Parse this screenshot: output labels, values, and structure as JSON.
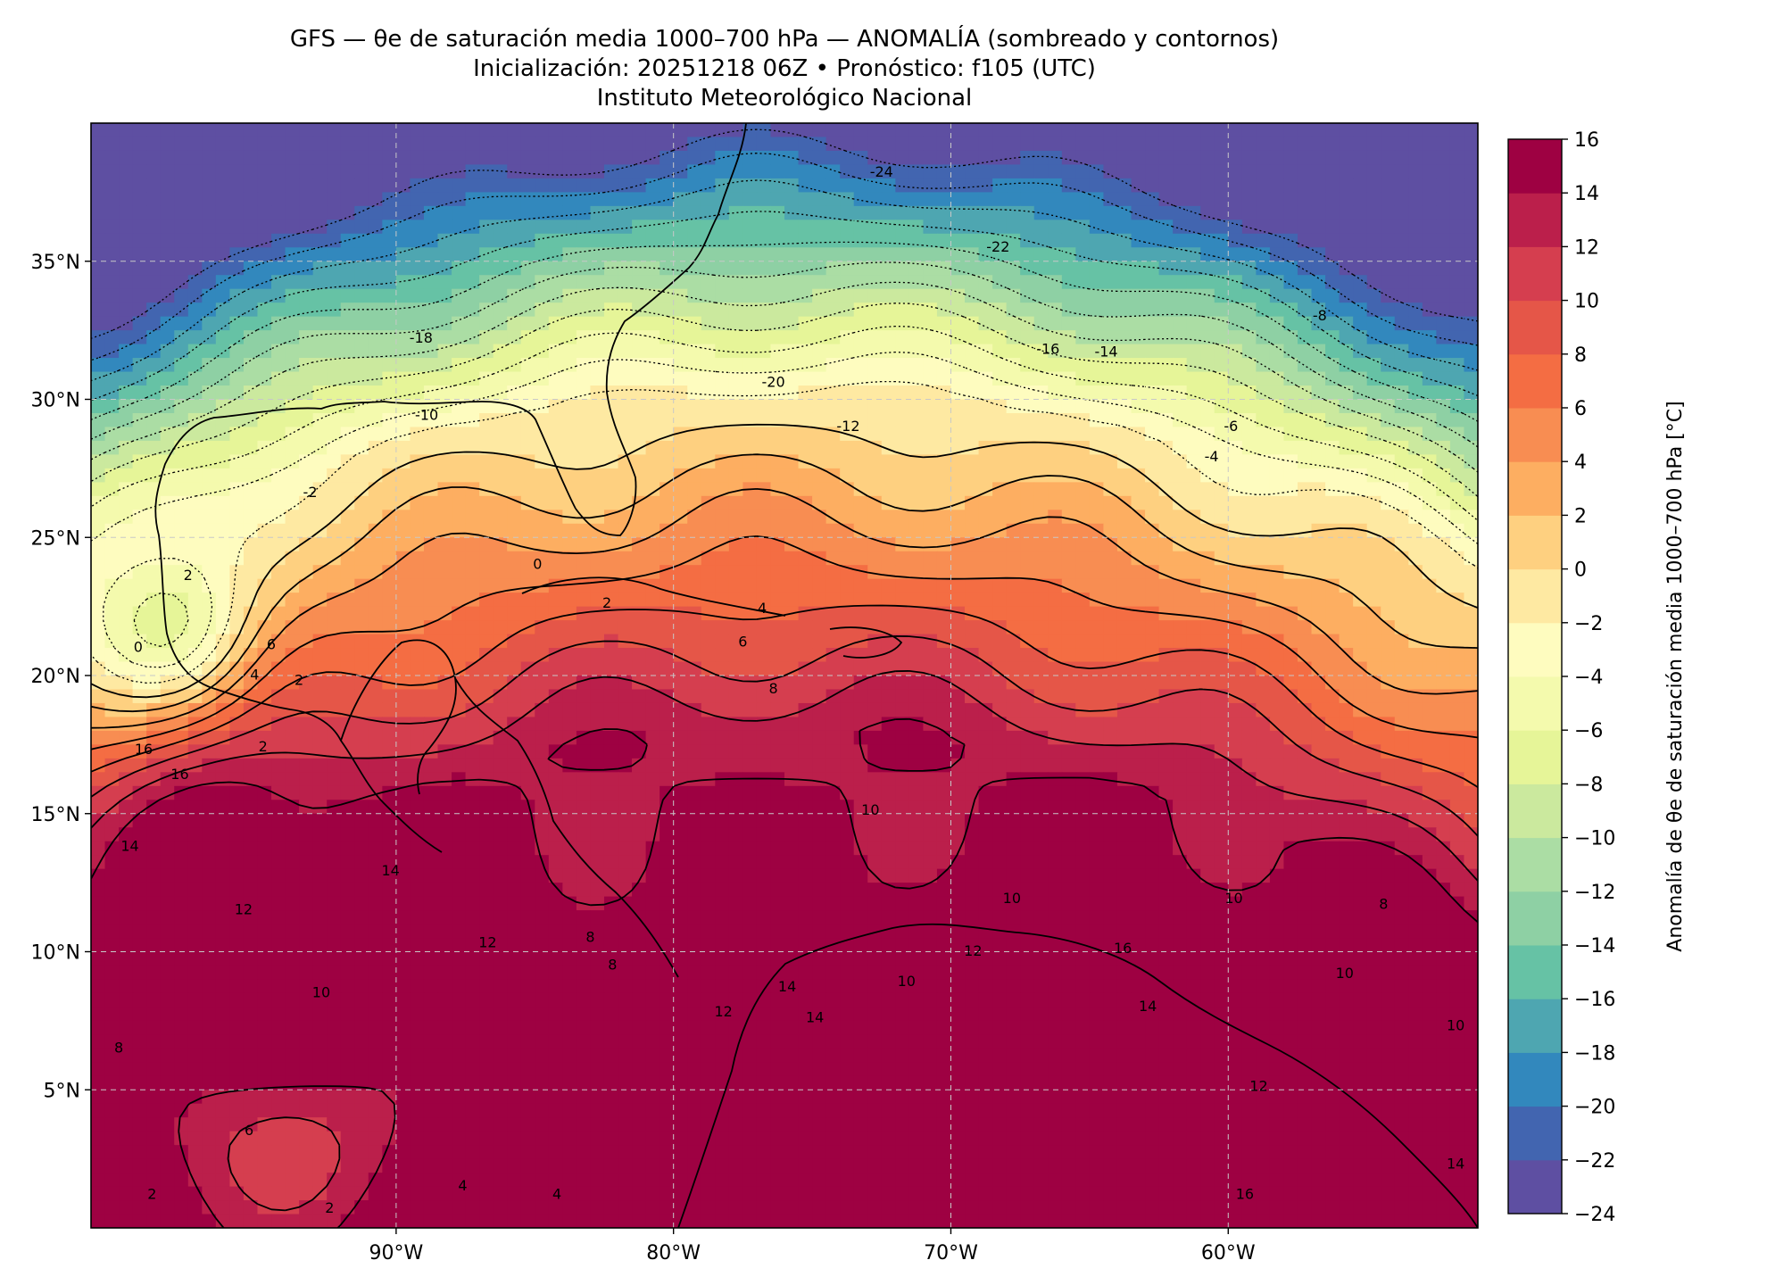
{
  "title": {
    "line1": "GFS — θe de saturación media 1000–700 hPa — ANOMALÍA (sombreado y contornos)",
    "line2": "Inicialización: 20251218 06Z   •   Pronóstico: f105 (UTC)",
    "line3": "Instituto Meteorológico Nacional"
  },
  "map": {
    "lon_range": [
      -101,
      -51
    ],
    "lat_range": [
      0,
      40
    ],
    "lon_ticks": [
      {
        "value": -90,
        "label": "90°W"
      },
      {
        "value": -80,
        "label": "80°W"
      },
      {
        "value": -70,
        "label": "70°W"
      },
      {
        "value": -60,
        "label": "60°W"
      }
    ],
    "lat_ticks": [
      {
        "value": 35,
        "label": "35°N"
      },
      {
        "value": 30,
        "label": "30°N"
      },
      {
        "value": 25,
        "label": "25°N"
      },
      {
        "value": 20,
        "label": "20°N"
      },
      {
        "value": 15,
        "label": "15°N"
      },
      {
        "value": 10,
        "label": "10°N"
      },
      {
        "value": 5,
        "label": "5°N"
      }
    ],
    "gridlines": true,
    "contour_labels": [
      {
        "value": "-24",
        "lon": -72.5,
        "lat": 38.2
      },
      {
        "value": "-22",
        "lon": -68.3,
        "lat": 35.5
      },
      {
        "value": "-20",
        "lon": -76.4,
        "lat": 30.6
      },
      {
        "value": "-18",
        "lon": -89.1,
        "lat": 32.2
      },
      {
        "value": "-16",
        "lon": -66.5,
        "lat": 31.8
      },
      {
        "value": "-14",
        "lon": -64.4,
        "lat": 31.7
      },
      {
        "value": "-12",
        "lon": -73.7,
        "lat": 29.0
      },
      {
        "value": "-10",
        "lon": -88.9,
        "lat": 29.4
      },
      {
        "value": "-8",
        "lon": -56.7,
        "lat": 33.0
      },
      {
        "value": "-6",
        "lon": -59.9,
        "lat": 29.0
      },
      {
        "value": "-4",
        "lon": -60.6,
        "lat": 27.9
      },
      {
        "value": "-2",
        "lon": -93.1,
        "lat": 26.6
      },
      {
        "value": "0",
        "lon": -84.9,
        "lat": 24.0
      },
      {
        "value": "2",
        "lon": -82.4,
        "lat": 22.6
      },
      {
        "value": "4",
        "lon": -76.8,
        "lat": 22.4
      },
      {
        "value": "6",
        "lon": -77.5,
        "lat": 21.2
      },
      {
        "value": "6",
        "lon": -94.5,
        "lat": 21.1
      },
      {
        "value": "2",
        "lon": -97.5,
        "lat": 23.6
      },
      {
        "value": "0",
        "lon": -99.3,
        "lat": 21.0
      },
      {
        "value": "4",
        "lon": -95.1,
        "lat": 20.0
      },
      {
        "value": "2",
        "lon": -93.5,
        "lat": 19.8
      },
      {
        "value": "2",
        "lon": -94.8,
        "lat": 17.4
      },
      {
        "value": "8",
        "lon": -76.4,
        "lat": 19.5
      },
      {
        "value": "10",
        "lon": -72.9,
        "lat": 15.1
      },
      {
        "value": "16",
        "lon": -99.1,
        "lat": 17.3
      },
      {
        "value": "16",
        "lon": -97.8,
        "lat": 16.4
      },
      {
        "value": "14",
        "lon": -99.6,
        "lat": 13.8
      },
      {
        "value": "14",
        "lon": -90.2,
        "lat": 12.9
      },
      {
        "value": "12",
        "lon": -95.5,
        "lat": 11.5
      },
      {
        "value": "12",
        "lon": -86.7,
        "lat": 10.3
      },
      {
        "value": "8",
        "lon": -83.0,
        "lat": 10.5
      },
      {
        "value": "8",
        "lon": -82.2,
        "lat": 9.5
      },
      {
        "value": "10",
        "lon": -92.7,
        "lat": 8.5
      },
      {
        "value": "8",
        "lon": -100.0,
        "lat": 6.5
      },
      {
        "value": "6",
        "lon": -95.3,
        "lat": 3.5
      },
      {
        "value": "4",
        "lon": -87.6,
        "lat": 1.5
      },
      {
        "value": "4",
        "lon": -84.2,
        "lat": 1.2
      },
      {
        "value": "2",
        "lon": -92.4,
        "lat": 0.7
      },
      {
        "value": "2",
        "lon": -98.8,
        "lat": 1.2
      },
      {
        "value": "14",
        "lon": -75.9,
        "lat": 8.7
      },
      {
        "value": "14",
        "lon": -74.9,
        "lat": 7.6
      },
      {
        "value": "12",
        "lon": -78.2,
        "lat": 7.8
      },
      {
        "value": "12",
        "lon": -69.2,
        "lat": 10.0
      },
      {
        "value": "10",
        "lon": -71.6,
        "lat": 8.9
      },
      {
        "value": "10",
        "lon": -67.8,
        "lat": 11.9
      },
      {
        "value": "10",
        "lon": -59.8,
        "lat": 11.9
      },
      {
        "value": "10",
        "lon": -55.8,
        "lat": 9.2
      },
      {
        "value": "10",
        "lon": -51.8,
        "lat": 7.3
      },
      {
        "value": "8",
        "lon": -54.4,
        "lat": 11.7
      },
      {
        "value": "14",
        "lon": -62.9,
        "lat": 8.0
      },
      {
        "value": "16",
        "lon": -63.8,
        "lat": 10.1
      },
      {
        "value": "12",
        "lon": -58.9,
        "lat": 5.1
      },
      {
        "value": "14",
        "lon": -51.8,
        "lat": 2.3
      },
      {
        "value": "16",
        "lon": -59.4,
        "lat": 1.2
      }
    ]
  },
  "colorbar": {
    "label": "Anomalía de θe de saturación media 1000–700 hPa [°C]",
    "levels": [
      -24,
      -22,
      -20,
      -18,
      -16,
      -14,
      -12,
      -10,
      -8,
      -6,
      -4,
      -2,
      0,
      2,
      4,
      6,
      8,
      10,
      12,
      14,
      16
    ],
    "tick_labels": [
      "−24",
      "−22",
      "−20",
      "−18",
      "−16",
      "−14",
      "−12",
      "−10",
      "−8",
      "−6",
      "−4",
      "−2",
      "0",
      "2",
      "4",
      "6",
      "8",
      "10",
      "12",
      "14",
      "16"
    ],
    "colors": [
      "#5e4fa2",
      "#4265b0",
      "#3288bd",
      "#4ea6b1",
      "#66c2a5",
      "#8ed0a4",
      "#abdda4",
      "#cbe99e",
      "#e6f598",
      "#f4faad",
      "#fefcbf",
      "#fee9a2",
      "#fed080",
      "#fdae61",
      "#f88d52",
      "#f46d43",
      "#e55648",
      "#d53e4f",
      "#bb1f4b",
      "#9e0142"
    ]
  }
}
